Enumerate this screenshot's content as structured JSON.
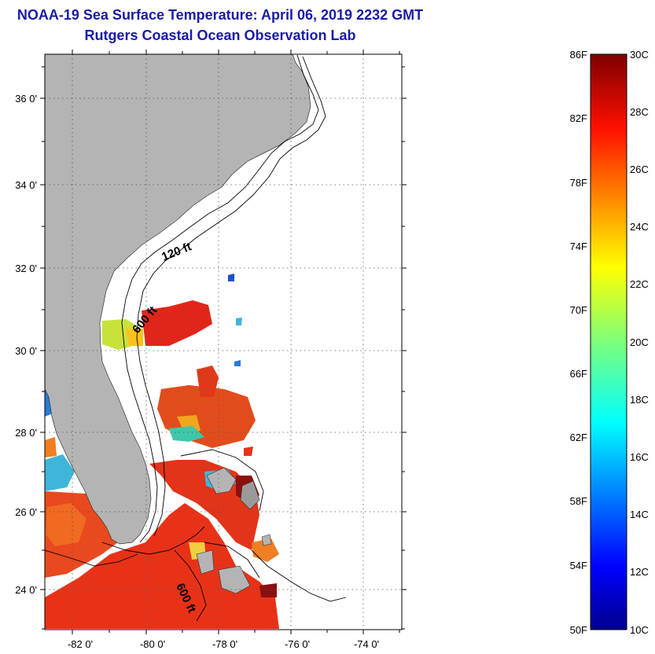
{
  "header": {
    "title": "NOAA-19 Sea Surface Temperature:  April 06, 2019 2232 GMT",
    "subtitle": "Rutgers Coastal Ocean Observation Lab"
  },
  "map": {
    "lat_labels": [
      "36 0'",
      "34 0'",
      "32 0'",
      "30 0'",
      "28 0'",
      "26 0'",
      "24 0'"
    ],
    "lon_labels": [
      "-82 0'",
      "-80 0'",
      "-78 0'",
      "-76 0'",
      "-74 0'"
    ],
    "contours": [
      "120 ft",
      "600 ft",
      "600 ft"
    ],
    "colors": {
      "land": "#b4b4b4",
      "background": "#ffffff",
      "warm": "#e83218",
      "title": "#1a1aa8"
    }
  },
  "colorbar": {
    "fahrenheit": [
      "86F",
      "82F",
      "78F",
      "74F",
      "70F",
      "66F",
      "62F",
      "58F",
      "54F",
      "50F"
    ],
    "celsius": [
      "30C",
      "28C",
      "26C",
      "24C",
      "22C",
      "20C",
      "18C",
      "16C",
      "14C",
      "12C",
      "10C"
    ]
  }
}
